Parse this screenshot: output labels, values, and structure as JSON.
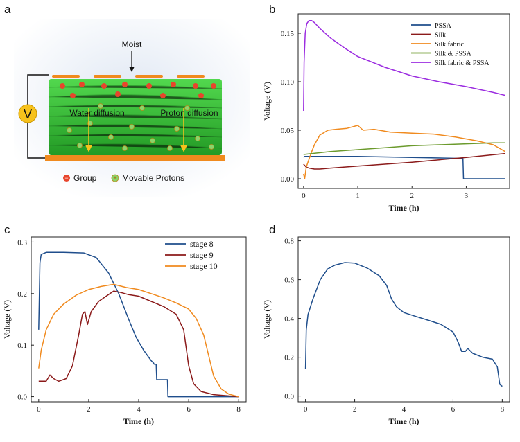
{
  "panel_labels": {
    "a": "a",
    "b": "b",
    "c": "c",
    "d": "d"
  },
  "illustration": {
    "moist_label": "Moist",
    "voltmeter_label": "V",
    "water_label": "Water diffusion",
    "proton_label": "Proton diffusion",
    "legend_group": "Group",
    "legend_protons": "Movable Protons",
    "group_sign": "−",
    "proton_sign": "+",
    "colors": {
      "fiber": "#3cc83a",
      "electrode": "#f08a1e",
      "group": "#e8452c",
      "proton": "#8bd46a",
      "meter": "#f7c21c"
    }
  },
  "chart_data": [
    {
      "id": "b",
      "type": "line",
      "title": "",
      "xlabel": "Time (h)",
      "ylabel": "Voltage (V)",
      "xlim": [
        -0.1,
        3.8
      ],
      "ylim": [
        -0.01,
        0.17
      ],
      "xticks": [
        0,
        1,
        2,
        3
      ],
      "yticks": [
        0.0,
        0.05,
        0.1,
        0.15
      ],
      "ytick_labels": [
        "0.00",
        "0.05",
        "0.10",
        "0.15"
      ],
      "legend_position": "top-right",
      "series": [
        {
          "name": "PSSA",
          "color": "#1f4e8c",
          "x": [
            0,
            0.02,
            0.1,
            1.0,
            2.0,
            2.94,
            2.95,
            3.72
          ],
          "y": [
            0.022,
            0.023,
            0.023,
            0.023,
            0.022,
            0.021,
            0.0,
            0.0
          ]
        },
        {
          "name": "Silk",
          "color": "#8b1a1a",
          "x": [
            0,
            0.05,
            0.1,
            0.2,
            0.3,
            0.5,
            1.0,
            2.0,
            3.0,
            3.72
          ],
          "y": [
            0.015,
            0.012,
            0.011,
            0.01,
            0.01,
            0.011,
            0.013,
            0.017,
            0.022,
            0.026
          ]
        },
        {
          "name": "Silk fabric",
          "color": "#f08a1e",
          "x": [
            0,
            0.02,
            0.05,
            0.1,
            0.15,
            0.2,
            0.3,
            0.45,
            0.6,
            0.8,
            1.0,
            1.1,
            1.3,
            1.6,
            2.0,
            2.4,
            2.8,
            3.2,
            3.5,
            3.72
          ],
          "y": [
            0.005,
            0.0,
            0.012,
            0.02,
            0.028,
            0.035,
            0.045,
            0.05,
            0.051,
            0.052,
            0.055,
            0.05,
            0.051,
            0.048,
            0.047,
            0.046,
            0.043,
            0.039,
            0.035,
            0.028
          ]
        },
        {
          "name": "Silk & PSSA",
          "color": "#6b9a2c",
          "x": [
            0,
            0.5,
            1.0,
            1.5,
            2.0,
            2.5,
            3.0,
            3.5,
            3.72
          ],
          "y": [
            0.025,
            0.028,
            0.03,
            0.032,
            0.034,
            0.035,
            0.036,
            0.037,
            0.037
          ]
        },
        {
          "name": "Silk fabric & PSSA",
          "color": "#9b2ce0",
          "x": [
            0,
            0.01,
            0.03,
            0.06,
            0.1,
            0.15,
            0.2,
            0.3,
            0.5,
            0.75,
            1.0,
            1.5,
            2.0,
            2.5,
            3.0,
            3.5,
            3.72
          ],
          "y": [
            0.07,
            0.12,
            0.15,
            0.16,
            0.163,
            0.163,
            0.161,
            0.155,
            0.145,
            0.135,
            0.126,
            0.115,
            0.106,
            0.1,
            0.095,
            0.089,
            0.086
          ]
        }
      ]
    },
    {
      "id": "c",
      "type": "line",
      "title": "",
      "xlabel": "Time (h)",
      "ylabel": "Voltage (V)",
      "xlim": [
        -0.3,
        8.3
      ],
      "ylim": [
        -0.01,
        0.31
      ],
      "xticks": [
        0,
        2,
        4,
        6,
        8
      ],
      "yticks": [
        0.0,
        0.1,
        0.2,
        0.3
      ],
      "ytick_labels": [
        "0.0",
        "0.1",
        "0.2",
        "0.3"
      ],
      "legend_position": "top-right",
      "series": [
        {
          "name": "stage 8",
          "color": "#1f4e8c",
          "x": [
            0,
            0.05,
            0.1,
            0.3,
            1.0,
            1.8,
            2.3,
            2.8,
            3.2,
            3.6,
            3.9,
            4.2,
            4.5,
            4.6,
            4.62,
            4.7,
            4.72,
            5.15,
            5.17,
            6.0,
            7.0,
            8.0
          ],
          "y": [
            0.13,
            0.26,
            0.276,
            0.28,
            0.28,
            0.279,
            0.27,
            0.24,
            0.2,
            0.15,
            0.115,
            0.09,
            0.07,
            0.065,
            0.063,
            0.063,
            0.033,
            0.033,
            0.0,
            0.0,
            0.0,
            0.0
          ]
        },
        {
          "name": "stage 9",
          "color": "#8b1a1a",
          "x": [
            0,
            0.3,
            0.45,
            0.6,
            0.8,
            1.1,
            1.35,
            1.6,
            1.75,
            1.85,
            1.95,
            2.1,
            2.4,
            2.7,
            3.0,
            3.3,
            3.6,
            4.0,
            4.5,
            5.0,
            5.5,
            5.8,
            6.0,
            6.2,
            6.5,
            7.0,
            7.5,
            8.0
          ],
          "y": [
            0.03,
            0.03,
            0.042,
            0.035,
            0.03,
            0.035,
            0.06,
            0.12,
            0.16,
            0.165,
            0.14,
            0.165,
            0.185,
            0.195,
            0.205,
            0.202,
            0.198,
            0.195,
            0.185,
            0.175,
            0.16,
            0.13,
            0.06,
            0.025,
            0.01,
            0.004,
            0.002,
            0.0
          ]
        },
        {
          "name": "stage 10",
          "color": "#f08a1e",
          "x": [
            0,
            0.1,
            0.3,
            0.6,
            1.0,
            1.5,
            2.0,
            2.5,
            3.0,
            3.5,
            4.0,
            4.5,
            5.0,
            5.5,
            6.0,
            6.3,
            6.6,
            6.8,
            7.0,
            7.3,
            7.6,
            8.0
          ],
          "y": [
            0.055,
            0.09,
            0.13,
            0.16,
            0.18,
            0.197,
            0.208,
            0.214,
            0.218,
            0.212,
            0.208,
            0.2,
            0.192,
            0.182,
            0.17,
            0.152,
            0.12,
            0.08,
            0.04,
            0.015,
            0.005,
            0.0
          ]
        }
      ]
    },
    {
      "id": "d",
      "type": "line",
      "title": "",
      "xlabel": "Time (h)",
      "ylabel": "Voltage (V)",
      "xlim": [
        -0.3,
        8.3
      ],
      "ylim": [
        -0.03,
        0.82
      ],
      "xticks": [
        0,
        2,
        4,
        6,
        8
      ],
      "yticks": [
        0.0,
        0.2,
        0.4,
        0.6,
        0.8
      ],
      "ytick_labels": [
        "0.0",
        "0.2",
        "0.4",
        "0.6",
        "0.8"
      ],
      "legend_position": "none",
      "series": [
        {
          "name": "voltage",
          "color": "#1f4e8c",
          "x": [
            0,
            0.03,
            0.1,
            0.3,
            0.6,
            0.9,
            1.2,
            1.6,
            2.0,
            2.5,
            3.0,
            3.3,
            3.5,
            3.7,
            4.0,
            4.5,
            5.0,
            5.5,
            6.0,
            6.2,
            6.35,
            6.5,
            6.6,
            6.8,
            7.2,
            7.6,
            7.8,
            7.9,
            8.0
          ],
          "y": [
            0.14,
            0.34,
            0.42,
            0.5,
            0.6,
            0.655,
            0.675,
            0.688,
            0.685,
            0.66,
            0.62,
            0.57,
            0.5,
            0.46,
            0.43,
            0.41,
            0.39,
            0.37,
            0.33,
            0.28,
            0.23,
            0.23,
            0.245,
            0.22,
            0.2,
            0.19,
            0.15,
            0.06,
            0.05
          ]
        }
      ]
    }
  ]
}
